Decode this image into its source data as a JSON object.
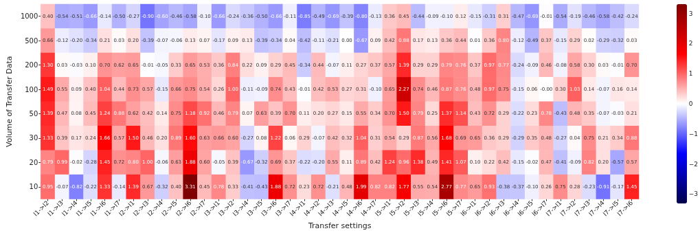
{
  "chart_data": {
    "type": "heatmap",
    "xlabel": "Transfer settings",
    "ylabel": "Volume of Transfer Data",
    "categories": [
      "l1->l2",
      "l1->l3",
      "l1->l4",
      "l1->l5",
      "l1->l6",
      "l1->l7",
      "l2->l1",
      "l2->l3",
      "l2->l4",
      "l2->l5",
      "l2->l6",
      "l2->l7",
      "l3->l1",
      "l3->l2",
      "l3->l4",
      "l3->l5",
      "l3->l6",
      "l3->l7",
      "l4->l1",
      "l4->l2",
      "l4->l3",
      "l4->l5",
      "l4->l6",
      "l4->l7",
      "l5->l1",
      "l5->l2",
      "l5->l3",
      "l5->l4",
      "l5->l6",
      "l5->l7",
      "l6->l1",
      "l6->l2",
      "l6->l3",
      "l6->l4",
      "l6->l5",
      "l6->l7",
      "l7->l1",
      "l7->l2",
      "l7->l3",
      "l7->l4",
      "l7->l5",
      "l7->l6"
    ],
    "y_categories": [
      "1000",
      "500",
      "200",
      "100",
      "50",
      "30",
      "20",
      "10"
    ],
    "cells": [
      [
        0.4,
        -0.54,
        -0.51,
        -0.66,
        -0.14,
        -0.5,
        -0.27,
        -0.9,
        -0.6,
        -0.46,
        -0.58,
        -0.1,
        -0.66,
        -0.24,
        -0.36,
        -0.5,
        -0.66,
        -0.11,
        -0.85,
        -0.49,
        -0.69,
        -0.39,
        -0.8,
        -0.13,
        0.36,
        0.45,
        -0.44,
        -0.09,
        -0.1,
        0.12,
        -0.15,
        -0.31,
        0.31,
        -0.47,
        -0.69,
        -0.01,
        -0.54,
        -0.19,
        -0.46,
        -0.58,
        -0.42,
        -0.24
      ],
      [
        0.66,
        -0.12,
        -0.2,
        -0.34,
        0.21,
        0.03,
        0.2,
        -0.39,
        -0.07,
        -0.06,
        0.13,
        0.07,
        -0.17,
        0.09,
        0.13,
        -0.39,
        -0.34,
        0.04,
        -0.42,
        -0.11,
        -0.21,
        0.0,
        -0.67,
        0.09,
        0.42,
        0.88,
        0.17,
        0.13,
        0.36,
        0.44,
        0.01,
        0.36,
        0.8,
        -0.12,
        -0.49,
        0.37,
        -0.15,
        0.29,
        0.02,
        -0.29,
        -0.32,
        0.03
      ],
      [
        1.3,
        0.03,
        -0.03,
        0.1,
        0.7,
        0.62,
        0.65,
        -0.01,
        -0.05,
        0.33,
        0.65,
        0.53,
        0.36,
        0.84,
        0.22,
        0.09,
        0.29,
        0.45,
        -0.34,
        0.44,
        -0.07,
        0.11,
        0.27,
        0.37,
        0.57,
        1.39,
        0.29,
        0.29,
        0.79,
        0.76,
        0.37,
        0.97,
        0.77,
        -0.24,
        -0.09,
        0.46,
        -0.08,
        0.58,
        0.3,
        0.03,
        -0.01,
        0.7
      ],
      [
        1.49,
        0.55,
        0.09,
        0.4,
        1.04,
        0.44,
        0.73,
        0.57,
        -0.15,
        0.66,
        0.75,
        0.54,
        0.26,
        1.0,
        -0.11,
        -0.09,
        0.74,
        0.43,
        -0.01,
        0.42,
        0.53,
        0.27,
        0.31,
        -0.1,
        0.65,
        2.27,
        0.74,
        0.46,
        0.87,
        0.76,
        0.48,
        0.97,
        0.75,
        -0.15,
        0.06,
        0.0,
        0.3,
        1.03,
        0.14,
        -0.07,
        0.16,
        0.14
      ],
      [
        1.39,
        0.47,
        0.08,
        0.45,
        1.24,
        0.88,
        0.62,
        0.42,
        0.14,
        0.75,
        1.18,
        0.92,
        0.46,
        0.79,
        0.07,
        0.63,
        0.39,
        0.7,
        0.11,
        0.2,
        0.27,
        0.15,
        0.55,
        0.34,
        0.7,
        1.5,
        0.79,
        0.25,
        1.37,
        1.14,
        0.43,
        0.72,
        0.29,
        -0.22,
        0.23,
        0.78,
        -0.43,
        0.48,
        0.35,
        -0.07,
        -0.03,
        0.21
      ],
      [
        1.33,
        0.39,
        0.17,
        0.24,
        1.66,
        0.57,
        1.5,
        0.46,
        0.2,
        0.89,
        1.6,
        0.63,
        0.66,
        0.6,
        -0.27,
        0.08,
        1.22,
        0.06,
        0.29,
        -0.07,
        0.42,
        0.32,
        1.04,
        0.31,
        0.54,
        0.29,
        0.87,
        0.56,
        1.68,
        0.69,
        0.65,
        0.36,
        0.29,
        -0.29,
        0.35,
        0.48,
        -0.27,
        0.04,
        0.75,
        0.21,
        0.34,
        0.88
      ],
      [
        0.79,
        0.99,
        -0.02,
        -0.28,
        1.45,
        0.72,
        0.8,
        1.0,
        -0.06,
        0.63,
        1.88,
        0.6,
        -0.05,
        0.39,
        -0.67,
        -0.32,
        0.69,
        0.37,
        -0.22,
        -0.2,
        0.55,
        0.11,
        0.89,
        0.42,
        1.24,
        0.96,
        1.38,
        0.49,
        1.41,
        1.07,
        0.1,
        0.22,
        0.42,
        -0.15,
        -0.02,
        0.47,
        -0.41,
        -0.09,
        0.82,
        0.2,
        -0.57,
        0.57
      ],
      [
        0.95,
        -0.07,
        -0.82,
        -0.22,
        1.33,
        -0.14,
        1.39,
        0.67,
        -0.32,
        0.4,
        3.31,
        0.45,
        0.78,
        0.33,
        -0.41,
        -0.43,
        1.88,
        0.72,
        0.23,
        0.72,
        -0.21,
        0.48,
        1.99,
        0.82,
        0.82,
        1.77,
        0.55,
        0.54,
        2.77,
        0.77,
        0.65,
        0.93,
        -0.38,
        -0.37,
        -0.1,
        0.26,
        0.75,
        0.28,
        -0.23,
        -0.91,
        -0.17,
        1.45
      ]
    ],
    "cell_labels": [
      [
        "0.40",
        "-0.54",
        "-0.51",
        "-0.66",
        "-0.14",
        "-0.50",
        "-0.27",
        "-0.90",
        "-0.60",
        "-0.46",
        "-0.58",
        "-0.10",
        "-0.66",
        "-0.24",
        "-0.36",
        "-0.50",
        "-0.66",
        "-0.11",
        "-0.85",
        "-0.49",
        "-0.69",
        "-0.39",
        "-0.80",
        "-0.13",
        "0.36",
        "0.45",
        "-0.44",
        "-0.09",
        "-0.10",
        "0.12",
        "-0.15",
        "-0.31",
        "0.31",
        "-0.47",
        "-0.69",
        "-0.01",
        "-0.54",
        "-0.19",
        "-0.46",
        "-0.58",
        "-0.42",
        "-0.24"
      ],
      [
        "0.66",
        "-0.12",
        "-0.20",
        "-0.34",
        "0.21",
        "0.03",
        "0.20",
        "-0.39",
        "-0.07",
        "-0.06",
        "0.13",
        "0.07",
        "-0.17",
        "0.09",
        "0.13",
        "-0.39",
        "-0.34",
        "0.04",
        "-0.42",
        "-0.11",
        "-0.21",
        "0.00",
        "-0.67",
        "0.09",
        "0.42",
        "0.88",
        "0.17",
        "0.13",
        "0.36",
        "0.44",
        "0.01",
        "0.36",
        "0.80",
        "-0.12",
        "-0.49",
        "0.37",
        "-0.15",
        "0.29",
        "0.02",
        "-0.29",
        "-0.32",
        "0.03"
      ],
      [
        "1.30",
        "0.03",
        "-0.03",
        "0.10",
        "0.70",
        "0.62",
        "0.65",
        "-0.01",
        "-0.05",
        "0.33",
        "0.65",
        "0.53",
        "0.36",
        "0.84",
        "0.22",
        "0.09",
        "0.29",
        "0.45",
        "-0.34",
        "0.44",
        "-0.07",
        "0.11",
        "0.27",
        "0.37",
        "0.57",
        "1.39",
        "0.29",
        "0.29",
        "0.79",
        "0.76",
        "0.37",
        "0.97",
        "0.77",
        "-0.24",
        "-0.09",
        "0.46",
        "-0.08",
        "0.58",
        "0.30",
        "0.03",
        "-0.01",
        "0.70"
      ],
      [
        "1.49",
        "0.55",
        "0.09",
        "0.40",
        "1.04",
        "0.44",
        "0.73",
        "0.57",
        "-0.15",
        "0.66",
        "0.75",
        "0.54",
        "0.26",
        "1.00",
        "-0.11",
        "-0.09",
        "0.74",
        "0.43",
        "-0.01",
        "0.42",
        "0.53",
        "0.27",
        "0.31",
        "-0.10",
        "0.65",
        "2.27",
        "0.74",
        "0.46",
        "0.87",
        "0.76",
        "0.48",
        "0.97",
        "0.75",
        "-0.15",
        "0.06",
        "-0.00",
        "0.30",
        "1.03",
        "0.14",
        "-0.07",
        "0.16",
        "0.14"
      ],
      [
        "1.39",
        "0.47",
        "0.08",
        "0.45",
        "1.24",
        "0.88",
        "0.62",
        "0.42",
        "0.14",
        "0.75",
        "1.18",
        "0.92",
        "0.46",
        "0.79",
        "0.07",
        "0.63",
        "0.39",
        "0.70",
        "0.11",
        "0.20",
        "0.27",
        "0.15",
        "0.55",
        "0.34",
        "0.70",
        "1.50",
        "0.79",
        "0.25",
        "1.37",
        "1.14",
        "0.43",
        "0.72",
        "0.29",
        "-0.22",
        "0.23",
        "0.78",
        "-0.43",
        "0.48",
        "0.35",
        "-0.07",
        "-0.03",
        "0.21"
      ],
      [
        "1.33",
        "0.39",
        "0.17",
        "0.24",
        "1.66",
        "0.57",
        "1.50",
        "0.46",
        "0.20",
        "0.89",
        "1.60",
        "0.63",
        "0.66",
        "0.60",
        "-0.27",
        "0.08",
        "1.22",
        "0.06",
        "0.29",
        "-0.07",
        "0.42",
        "0.32",
        "1.04",
        "0.31",
        "0.54",
        "0.29",
        "0.87",
        "0.56",
        "1.68",
        "0.69",
        "0.65",
        "0.36",
        "0.29",
        "-0.29",
        "0.35",
        "0.48",
        "-0.27",
        "0.04",
        "0.75",
        "0.21",
        "0.34",
        "0.88"
      ],
      [
        "0.79",
        "0.99",
        "-0.02",
        "-0.28",
        "1.45",
        "0.72",
        "0.80",
        "1.00",
        "-0.06",
        "0.63",
        "1.88",
        "0.60",
        "-0.05",
        "0.39",
        "-0.67",
        "-0.32",
        "0.69",
        "0.37",
        "-0.22",
        "-0.20",
        "0.55",
        "0.11",
        "0.89",
        "0.42",
        "1.24",
        "0.96",
        "1.38",
        "0.49",
        "1.41",
        "1.07",
        "0.10",
        "0.22",
        "0.42",
        "-0.15",
        "-0.02",
        "0.47",
        "-0.41",
        "-0.09",
        "0.82",
        "0.20",
        "-0.57",
        "0.57"
      ],
      [
        "0.95",
        "-0.07",
        "-0.82",
        "-0.22",
        "1.33",
        "-0.14",
        "1.39",
        "0.67",
        "-0.32",
        "0.40",
        "3.31",
        "0.45",
        "0.78",
        "0.33",
        "-0.41",
        "-0.43",
        "1.88",
        "0.72",
        "0.23",
        "0.72",
        "-0.21",
        "0.48",
        "1.99",
        "0.82",
        "0.82",
        "1.77",
        "0.55",
        "0.54",
        "2.77",
        "0.77",
        "0.65",
        "0.93",
        "-0.38",
        "-0.37",
        "-0.10",
        "0.26",
        "0.75",
        "0.28",
        "-0.23",
        "-0.91",
        "-0.17",
        "1.45"
      ]
    ],
    "clim": [
      -3.31,
      3.31
    ],
    "cticks": [
      -3,
      -2,
      -1,
      0,
      1,
      2,
      3
    ]
  }
}
